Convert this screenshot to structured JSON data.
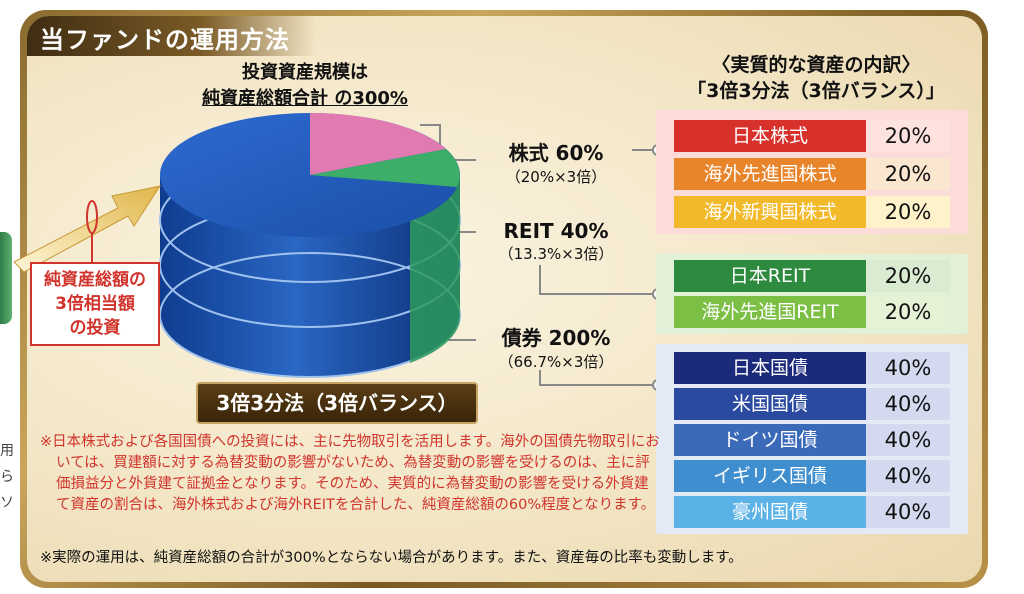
{
  "title": "当ファンドの運用方法",
  "left_cut": [
    "用",
    "ら",
    "ソ"
  ],
  "top_label": {
    "line1": "投資資産規模は",
    "line2": "純資産総額合計 の300%"
  },
  "callout": {
    "line1": "純資産総額の",
    "line2": "3倍相当額",
    "line3": "の投資"
  },
  "categories": [
    {
      "label": "株式 60%",
      "sub": "（20%×3倍）"
    },
    {
      "label": "REIT 40%",
      "sub": "（13.3%×3倍）"
    },
    {
      "label": "債券 200%",
      "sub": "（66.7%×3倍）"
    }
  ],
  "balance_button": "3倍3分法（3倍バランス）",
  "breakdown_title": {
    "line1": "〈実質的な資産の内訳〉",
    "line2": "「3倍3分法（3倍バランス）」"
  },
  "groups": [
    {
      "rows": [
        {
          "name": "日本株式",
          "pct": "20%",
          "color": "#d8312b",
          "bg": "#fde2de"
        },
        {
          "name": "海外先進国株式",
          "pct": "20%",
          "color": "#e8842a",
          "bg": "#fbe6cf"
        },
        {
          "name": "海外新興国株式",
          "pct": "20%",
          "color": "#f2b92a",
          "bg": "#fdf2c9"
        }
      ]
    },
    {
      "rows": [
        {
          "name": "日本REIT",
          "pct": "20%",
          "color": "#2e8a3f",
          "bg": "#d9ecd1"
        },
        {
          "name": "海外先進国REIT",
          "pct": "20%",
          "color": "#7cbf45",
          "bg": "#e5f2d6"
        }
      ]
    },
    {
      "rows": [
        {
          "name": "日本国債",
          "pct": "40%",
          "color": "#1b2a7a",
          "bg": "#d3daf0"
        },
        {
          "name": "米国国債",
          "pct": "40%",
          "color": "#2a4aa0",
          "bg": "#d3daf0"
        },
        {
          "name": "ドイツ国債",
          "pct": "40%",
          "color": "#3a6ab8",
          "bg": "#d3daf0"
        },
        {
          "name": "イギリス国債",
          "pct": "40%",
          "color": "#3f8fd0",
          "bg": "#d3daf0"
        },
        {
          "name": "豪州国債",
          "pct": "40%",
          "color": "#5ab2e6",
          "bg": "#d3daf0"
        }
      ]
    }
  ],
  "notes": [
    "※日本株式および各国国債への投資には、主に先物取引を活用します。海外の国債先物取引においては、買建額に対する為替変動の影響がないため、為替変動の影響を受けるのは、主に評価損益分と外貨建て証拠金となります。そのため、実質的に為替変動の影響を受ける外貨建て資産の割合は、海外株式および海外REITを合計した、純資産総額の60%程度となります。"
  ],
  "note_black": "※実際の運用は、純資産総額の合計が300%とならない場合があります。また、資産毎の比率も変動します。",
  "colors": {
    "stock": "#e07ab0",
    "reit": "#3cae6a",
    "bond": "#1f56b0",
    "callout_red": "#d0342c"
  }
}
